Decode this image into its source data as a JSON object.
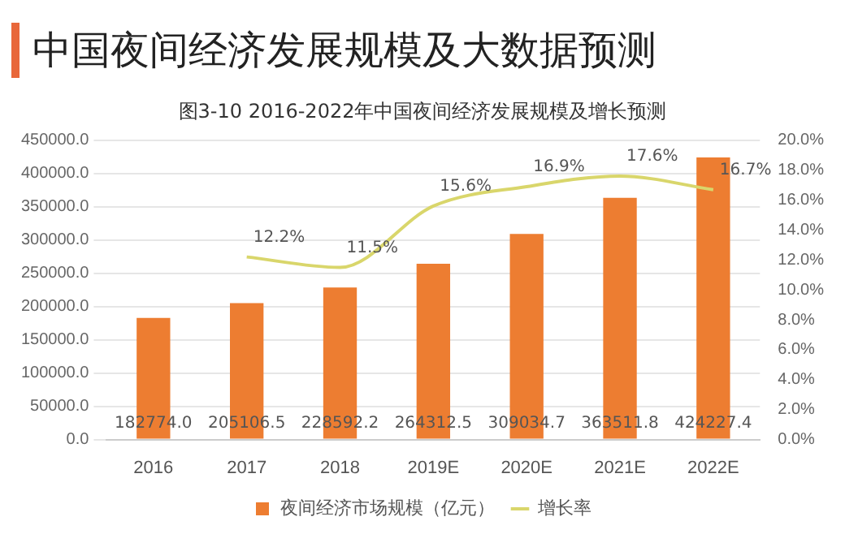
{
  "chart_data": {
    "type": "bar",
    "title": "中国夜间经济发展规模及大数据预测",
    "subtitle": "图3-10 2016-2022年中国夜间经济发展规模及增长预测",
    "categories": [
      "2016",
      "2017",
      "2018",
      "2019E",
      "2020E",
      "2021E",
      "2022E"
    ],
    "series": [
      {
        "name": "夜间经济市场规模（亿元）",
        "color": "#ed7d31",
        "values": [
          182774.0,
          205106.5,
          228592.2,
          264312.5,
          309034.7,
          363511.8,
          424227.4
        ],
        "value_labels": [
          "182774.0",
          "205106.5",
          "228592.2",
          "264312.5",
          "309034.7",
          "363511.8",
          "424227.4"
        ]
      },
      {
        "name": "增长率",
        "type": "line",
        "axis": "y2",
        "color": "#d9d66b",
        "values": [
          null,
          12.2,
          11.5,
          15.6,
          16.9,
          17.6,
          16.7
        ],
        "value_labels": [
          null,
          "12.2%",
          "11.5%",
          "15.6%",
          "16.9%",
          "17.6%",
          "16.7%"
        ]
      }
    ],
    "ylim": [
      0,
      450000
    ],
    "yticks": [
      {
        "value": 0,
        "label": "0.0"
      },
      {
        "value": 50000,
        "label": "50000.0"
      },
      {
        "value": 100000,
        "label": "100000.0"
      },
      {
        "value": 150000,
        "label": "150000.0"
      },
      {
        "value": 200000,
        "label": "200000.0"
      },
      {
        "value": 250000,
        "label": "250000.0"
      },
      {
        "value": 300000,
        "label": "300000.0"
      },
      {
        "value": 350000,
        "label": "350000.0"
      },
      {
        "value": 400000,
        "label": "400000.0"
      },
      {
        "value": 450000,
        "label": "450000.0"
      }
    ],
    "y2lim": [
      0,
      20
    ],
    "y2ticks": [
      {
        "value": 0,
        "label": "0.0%"
      },
      {
        "value": 2,
        "label": "2.0%"
      },
      {
        "value": 4,
        "label": "4.0%"
      },
      {
        "value": 6,
        "label": "6.0%"
      },
      {
        "value": 8,
        "label": "8.0%"
      },
      {
        "value": 10,
        "label": "10.0%"
      },
      {
        "value": 12,
        "label": "12.0%"
      },
      {
        "value": 14,
        "label": "14.0%"
      },
      {
        "value": 16,
        "label": "16.0%"
      },
      {
        "value": 18,
        "label": "18.0%"
      },
      {
        "value": 20,
        "label": "20.0%"
      }
    ],
    "grid": "y",
    "legend": "bottom",
    "marker": "none"
  }
}
